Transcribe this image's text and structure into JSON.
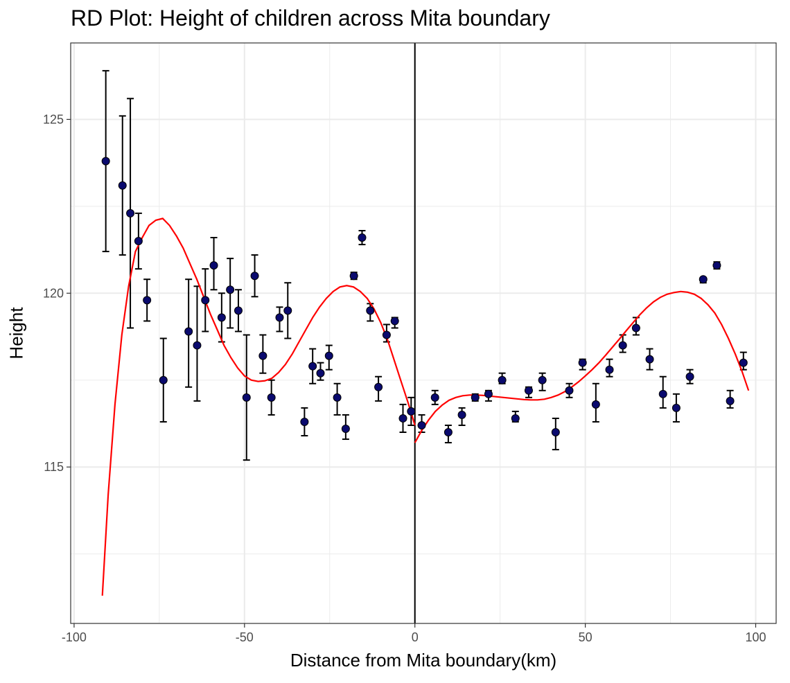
{
  "chart_data": {
    "type": "scatter",
    "title": "RD Plot: Height of children across Mita boundary",
    "xlabel": "Distance from Mita boundary(km)",
    "ylabel": "Height",
    "xlim": [
      -101,
      106
    ],
    "ylim": [
      110.5,
      127.2
    ],
    "x_ticks": [
      -100,
      -50,
      0,
      50,
      100
    ],
    "x_tick_labels": [
      "-100",
      "-50",
      "0",
      "50",
      "100"
    ],
    "y_ticks": [
      115,
      120,
      125
    ],
    "y_tick_labels": [
      "115",
      "120",
      "125"
    ],
    "grid": true,
    "cutoff": 0,
    "colors": {
      "points": "#0a0a6e",
      "fit": "#ff0000",
      "errorbars": "#000000",
      "cutoff": "#000000",
      "grid": "#ebebeb"
    },
    "points": [
      {
        "x": -90.7,
        "y": 123.8,
        "lo": 121.2,
        "hi": 126.4
      },
      {
        "x": -85.8,
        "y": 123.1,
        "lo": 121.1,
        "hi": 125.1
      },
      {
        "x": -83.5,
        "y": 122.3,
        "lo": 119.0,
        "hi": 125.6
      },
      {
        "x": -81.1,
        "y": 121.5,
        "lo": 120.7,
        "hi": 122.3
      },
      {
        "x": -78.6,
        "y": 119.8,
        "lo": 119.2,
        "hi": 120.4
      },
      {
        "x": -73.8,
        "y": 117.5,
        "lo": 116.3,
        "hi": 118.7
      },
      {
        "x": -66.4,
        "y": 118.9,
        "lo": 117.3,
        "hi": 120.4
      },
      {
        "x": -63.9,
        "y": 118.5,
        "lo": 116.9,
        "hi": 120.2
      },
      {
        "x": -61.5,
        "y": 119.8,
        "lo": 118.9,
        "hi": 120.7
      },
      {
        "x": -59.0,
        "y": 120.8,
        "lo": 120.1,
        "hi": 121.6
      },
      {
        "x": -56.7,
        "y": 119.3,
        "lo": 118.6,
        "hi": 120.0
      },
      {
        "x": -54.2,
        "y": 120.1,
        "lo": 119.0,
        "hi": 121.0
      },
      {
        "x": -51.8,
        "y": 119.5,
        "lo": 118.9,
        "hi": 120.1
      },
      {
        "x": -49.4,
        "y": 117.0,
        "lo": 115.2,
        "hi": 118.8
      },
      {
        "x": -47.0,
        "y": 120.5,
        "lo": 119.9,
        "hi": 121.1
      },
      {
        "x": -44.6,
        "y": 118.2,
        "lo": 117.7,
        "hi": 118.8
      },
      {
        "x": -42.1,
        "y": 117.0,
        "lo": 116.5,
        "hi": 117.5
      },
      {
        "x": -39.7,
        "y": 119.3,
        "lo": 118.9,
        "hi": 119.6
      },
      {
        "x": -37.3,
        "y": 119.5,
        "lo": 118.7,
        "hi": 120.3
      },
      {
        "x": -32.4,
        "y": 116.3,
        "lo": 115.9,
        "hi": 116.7
      },
      {
        "x": -30.0,
        "y": 117.9,
        "lo": 117.4,
        "hi": 118.4
      },
      {
        "x": -27.7,
        "y": 117.7,
        "lo": 117.5,
        "hi": 118.0
      },
      {
        "x": -25.2,
        "y": 118.2,
        "lo": 117.8,
        "hi": 118.5
      },
      {
        "x": -22.8,
        "y": 117.0,
        "lo": 116.5,
        "hi": 117.4
      },
      {
        "x": -20.3,
        "y": 116.1,
        "lo": 115.8,
        "hi": 116.5
      },
      {
        "x": -17.9,
        "y": 120.5,
        "lo": 120.4,
        "hi": 120.6
      },
      {
        "x": -15.5,
        "y": 121.6,
        "lo": 121.4,
        "hi": 121.8
      },
      {
        "x": -13.1,
        "y": 119.5,
        "lo": 119.2,
        "hi": 119.7
      },
      {
        "x": -10.7,
        "y": 117.3,
        "lo": 116.9,
        "hi": 117.6
      },
      {
        "x": -8.3,
        "y": 118.8,
        "lo": 118.6,
        "hi": 119.1
      },
      {
        "x": -5.9,
        "y": 119.2,
        "lo": 119.0,
        "hi": 119.3
      },
      {
        "x": -3.5,
        "y": 116.4,
        "lo": 116.0,
        "hi": 116.8
      },
      {
        "x": -1.1,
        "y": 116.6,
        "lo": 116.2,
        "hi": 117.0
      },
      {
        "x": 2.0,
        "y": 116.2,
        "lo": 116.0,
        "hi": 116.5
      },
      {
        "x": 5.9,
        "y": 117.0,
        "lo": 116.8,
        "hi": 117.2
      },
      {
        "x": 9.8,
        "y": 116.0,
        "lo": 115.7,
        "hi": 116.2
      },
      {
        "x": 13.8,
        "y": 116.5,
        "lo": 116.2,
        "hi": 116.7
      },
      {
        "x": 17.7,
        "y": 117.0,
        "lo": 116.9,
        "hi": 117.1
      },
      {
        "x": 21.6,
        "y": 117.1,
        "lo": 116.9,
        "hi": 117.2
      },
      {
        "x": 25.6,
        "y": 117.5,
        "lo": 117.4,
        "hi": 117.7
      },
      {
        "x": 29.5,
        "y": 116.4,
        "lo": 116.3,
        "hi": 116.6
      },
      {
        "x": 33.4,
        "y": 117.2,
        "lo": 117.0,
        "hi": 117.3
      },
      {
        "x": 37.4,
        "y": 117.5,
        "lo": 117.2,
        "hi": 117.7
      },
      {
        "x": 41.3,
        "y": 116.0,
        "lo": 115.5,
        "hi": 116.4
      },
      {
        "x": 45.3,
        "y": 117.2,
        "lo": 117.0,
        "hi": 117.4
      },
      {
        "x": 49.2,
        "y": 118.0,
        "lo": 117.8,
        "hi": 118.1
      },
      {
        "x": 53.1,
        "y": 116.8,
        "lo": 116.3,
        "hi": 117.4
      },
      {
        "x": 57.1,
        "y": 117.8,
        "lo": 117.6,
        "hi": 118.1
      },
      {
        "x": 61.0,
        "y": 118.5,
        "lo": 118.3,
        "hi": 118.8
      },
      {
        "x": 64.9,
        "y": 119.0,
        "lo": 118.8,
        "hi": 119.3
      },
      {
        "x": 68.9,
        "y": 118.1,
        "lo": 117.8,
        "hi": 118.4
      },
      {
        "x": 72.8,
        "y": 117.1,
        "lo": 116.7,
        "hi": 117.6
      },
      {
        "x": 76.7,
        "y": 116.7,
        "lo": 116.3,
        "hi": 117.1
      },
      {
        "x": 80.7,
        "y": 117.6,
        "lo": 117.4,
        "hi": 117.8
      },
      {
        "x": 84.6,
        "y": 120.4,
        "lo": 120.3,
        "hi": 120.4
      },
      {
        "x": 88.6,
        "y": 120.8,
        "lo": 120.7,
        "hi": 120.9
      },
      {
        "x": 92.5,
        "y": 116.9,
        "lo": 116.7,
        "hi": 117.2
      },
      {
        "x": 96.4,
        "y": 118.0,
        "lo": 117.8,
        "hi": 118.3
      }
    ],
    "fit_left": [
      [
        -91.7,
        111.3
      ],
      [
        -90.0,
        114.2
      ],
      [
        -88.0,
        116.8
      ],
      [
        -86.0,
        118.8
      ],
      [
        -84.0,
        120.2
      ],
      [
        -82.0,
        121.2
      ],
      [
        -80.0,
        121.6
      ],
      [
        -78.0,
        121.95
      ],
      [
        -76.0,
        122.1
      ],
      [
        -74.0,
        122.15
      ],
      [
        -72.0,
        121.95
      ],
      [
        -70.0,
        121.65
      ],
      [
        -68.0,
        121.3
      ],
      [
        -66.0,
        120.85
      ],
      [
        -64.0,
        120.4
      ],
      [
        -62.0,
        119.9
      ],
      [
        -60.0,
        119.4
      ],
      [
        -58.0,
        118.95
      ],
      [
        -56.0,
        118.5
      ],
      [
        -54.0,
        118.15
      ],
      [
        -52.0,
        117.85
      ],
      [
        -50.0,
        117.62
      ],
      [
        -48.0,
        117.5
      ],
      [
        -46.0,
        117.46
      ],
      [
        -44.0,
        117.48
      ],
      [
        -42.0,
        117.55
      ],
      [
        -40.0,
        117.72
      ],
      [
        -38.0,
        117.95
      ],
      [
        -36.0,
        118.25
      ],
      [
        -34.0,
        118.6
      ],
      [
        -32.0,
        118.95
      ],
      [
        -30.0,
        119.3
      ],
      [
        -28.0,
        119.6
      ],
      [
        -26.0,
        119.85
      ],
      [
        -24.0,
        120.05
      ],
      [
        -22.0,
        120.18
      ],
      [
        -20.0,
        120.22
      ],
      [
        -18.0,
        120.18
      ],
      [
        -16.0,
        120.05
      ],
      [
        -14.0,
        119.85
      ],
      [
        -12.0,
        119.55
      ],
      [
        -10.0,
        119.15
      ],
      [
        -8.0,
        118.65
      ],
      [
        -6.0,
        118.05
      ],
      [
        -4.0,
        117.45
      ],
      [
        -2.0,
        116.85
      ],
      [
        0.0,
        116.2
      ]
    ],
    "fit_right": [
      [
        0.0,
        115.7
      ],
      [
        2.0,
        116.05
      ],
      [
        4.0,
        116.35
      ],
      [
        6.0,
        116.6
      ],
      [
        8.0,
        116.78
      ],
      [
        10.0,
        116.92
      ],
      [
        12.0,
        117.0
      ],
      [
        14.0,
        117.05
      ],
      [
        16.0,
        117.07
      ],
      [
        18.0,
        117.07
      ],
      [
        20.0,
        117.06
      ],
      [
        22.0,
        117.04
      ],
      [
        24.0,
        117.02
      ],
      [
        26.0,
        117.0
      ],
      [
        28.0,
        116.98
      ],
      [
        30.0,
        116.96
      ],
      [
        32.0,
        116.94
      ],
      [
        34.0,
        116.93
      ],
      [
        36.0,
        116.93
      ],
      [
        38.0,
        116.95
      ],
      [
        40.0,
        117.0
      ],
      [
        42.0,
        117.07
      ],
      [
        44.0,
        117.17
      ],
      [
        46.0,
        117.3
      ],
      [
        48.0,
        117.45
      ],
      [
        50.0,
        117.62
      ],
      [
        52.0,
        117.8
      ],
      [
        54.0,
        118.0
      ],
      [
        56.0,
        118.22
      ],
      [
        58.0,
        118.45
      ],
      [
        60.0,
        118.68
      ],
      [
        62.0,
        118.92
      ],
      [
        64.0,
        119.15
      ],
      [
        66.0,
        119.38
      ],
      [
        68.0,
        119.58
      ],
      [
        70.0,
        119.75
      ],
      [
        72.0,
        119.88
      ],
      [
        74.0,
        119.97
      ],
      [
        76.0,
        120.02
      ],
      [
        78.0,
        120.05
      ],
      [
        80.0,
        120.03
      ],
      [
        82.0,
        119.97
      ],
      [
        84.0,
        119.85
      ],
      [
        86.0,
        119.67
      ],
      [
        88.0,
        119.43
      ],
      [
        90.0,
        119.1
      ],
      [
        92.0,
        118.7
      ],
      [
        94.0,
        118.25
      ],
      [
        96.0,
        117.75
      ],
      [
        97.9,
        117.2
      ]
    ]
  }
}
